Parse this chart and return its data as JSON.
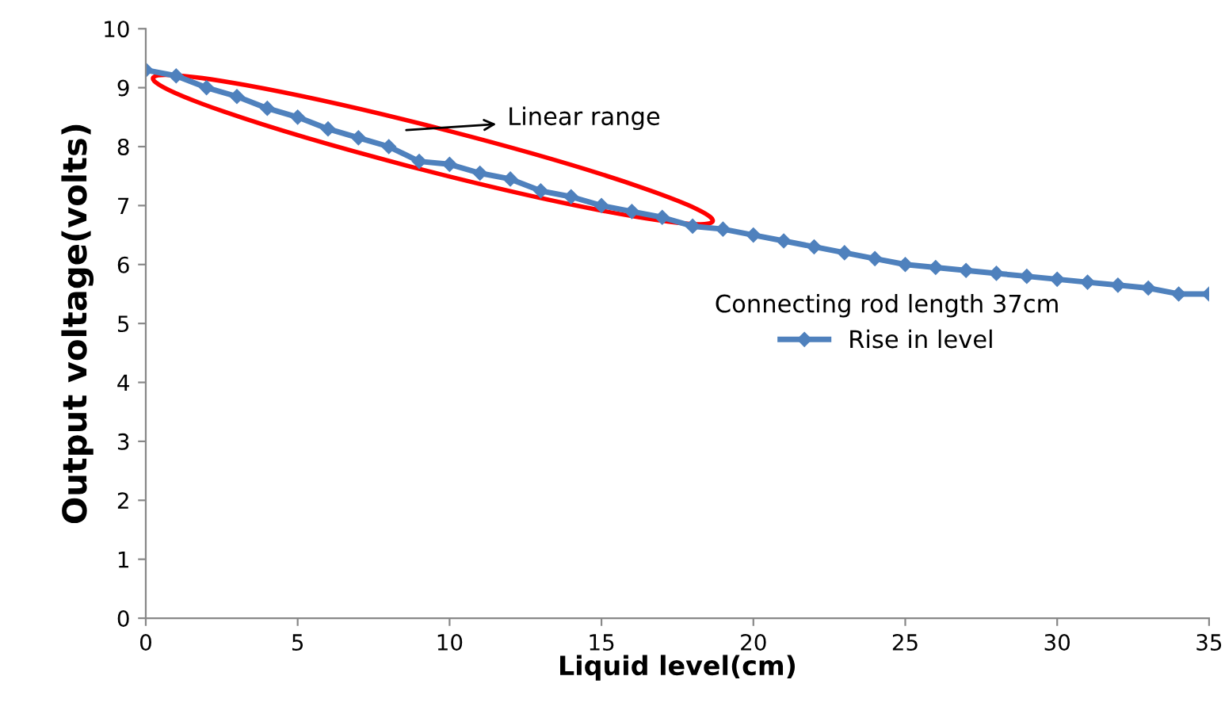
{
  "chart_data": {
    "type": "line",
    "xlabel": "Liquid level(cm)",
    "ylabel": "Output voltage(volts)",
    "legend_title": "Connecting rod length 37cm",
    "x": [
      0,
      1,
      2,
      3,
      4,
      5,
      6,
      7,
      8,
      9,
      10,
      11,
      12,
      13,
      14,
      15,
      16,
      17,
      18,
      19,
      20,
      21,
      22,
      23,
      24,
      25,
      26,
      27,
      28,
      29,
      30,
      31,
      32,
      33,
      34,
      35
    ],
    "series": [
      {
        "name": "Rise in level",
        "color": "#4f81bd",
        "values": [
          9.3,
          9.2,
          9.0,
          8.85,
          8.65,
          8.5,
          8.3,
          8.15,
          8.0,
          7.75,
          7.7,
          7.55,
          7.45,
          7.25,
          7.15,
          7.0,
          6.9,
          6.8,
          6.65,
          6.6,
          6.5,
          6.4,
          6.3,
          6.2,
          6.1,
          6.0,
          5.95,
          5.9,
          5.85,
          5.8,
          5.75,
          5.7,
          5.65,
          5.6,
          5.5,
          5.5
        ]
      }
    ],
    "xlim": [
      0,
      35
    ],
    "xticks": [
      0,
      5,
      10,
      15,
      20,
      25,
      30,
      35
    ],
    "ylim": [
      0,
      10
    ],
    "yticks": [
      0,
      1,
      2,
      3,
      4,
      5,
      6,
      7,
      8,
      9,
      10
    ],
    "annotations": [
      "Linear range"
    ],
    "grid": false,
    "legend": "center right",
    "marker": "diamond",
    "line_style": "solid"
  }
}
